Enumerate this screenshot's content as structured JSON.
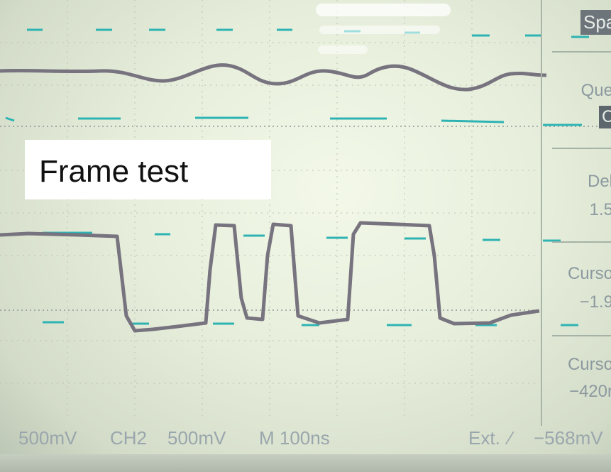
{
  "annotation": {
    "text": "Frame test"
  },
  "right_menu": {
    "span": {
      "label": "Span"
    },
    "question": {
      "label": "Que",
      "badge": "CH"
    },
    "delta": {
      "label": "Del",
      "value": "1.5"
    },
    "cursor1": {
      "label": "Curso",
      "value": "−1.9"
    },
    "cursor2": {
      "label": "Curso",
      "value": "−420r"
    }
  },
  "status_bar": {
    "ch1_scale": "500mV",
    "ch2_name": "CH2",
    "ch2_scale": "500mV",
    "timebase": "M 100ns",
    "trigger_source": "Ext.",
    "trigger_slope_symbol": "∕",
    "trigger_level": "−568mV"
  },
  "colors": {
    "trace": "#75727f",
    "cursor": "#2eb3b3",
    "grid": "#b7c1b0",
    "label_bg": "#ffffff"
  }
}
